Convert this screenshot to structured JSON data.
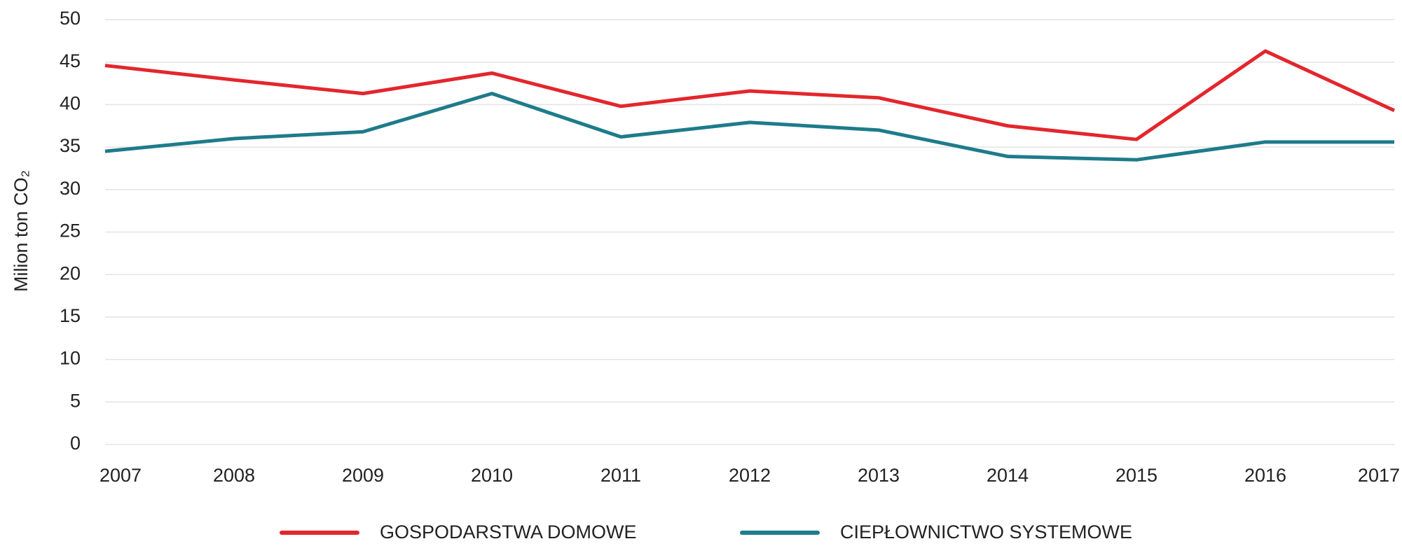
{
  "chart_data": {
    "type": "line",
    "y_label": "Milion ton CO₂",
    "categories": [
      "2007",
      "2008",
      "2009",
      "2010",
      "2011",
      "2012",
      "2013",
      "2014",
      "2015",
      "2016",
      "2017"
    ],
    "series": [
      {
        "name": "GOSPODARSTWA DOMOWE",
        "color": "#e3262d",
        "values": [
          44.6,
          42.9,
          41.3,
          43.7,
          39.8,
          41.6,
          40.8,
          37.5,
          35.9,
          46.3,
          39.3
        ]
      },
      {
        "name": "CIEPŁOWNICTWO SYSTEMOWE",
        "color": "#1e7b8b",
        "values": [
          34.5,
          36.0,
          36.8,
          41.3,
          36.2,
          37.9,
          37.0,
          33.9,
          33.5,
          35.6,
          35.6
        ]
      }
    ],
    "ylim": [
      0,
      50
    ],
    "yticks": [
      0,
      5,
      10,
      15,
      20,
      25,
      30,
      35,
      40,
      45,
      50
    ],
    "grid": true,
    "legend": "bottom"
  }
}
